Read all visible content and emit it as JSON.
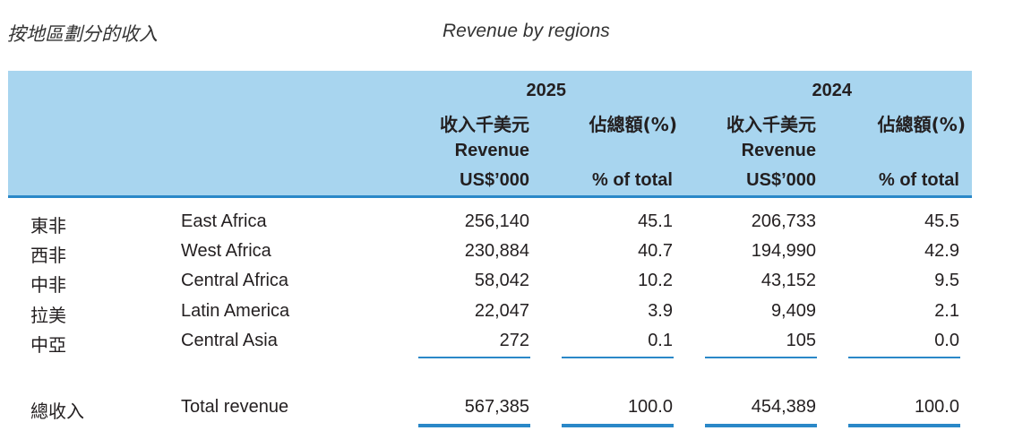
{
  "title": {
    "zh": "按地區劃分的收入",
    "en": "Revenue by regions"
  },
  "header": {
    "years": [
      "2025",
      "2024"
    ],
    "col_revenue_zh": "收入千美元",
    "col_revenue_en": "Revenue",
    "col_revenue_unit": "US$’000",
    "col_pct_zh": "佔總額(%)",
    "col_pct_en": "% of total"
  },
  "rows": [
    {
      "zh": "東非",
      "en": "East Africa",
      "rev_2025": "256,140",
      "pct_2025": "45.1",
      "rev_2024": "206,733",
      "pct_2024": "45.5"
    },
    {
      "zh": "西非",
      "en": "West Africa",
      "rev_2025": "230,884",
      "pct_2025": "40.7",
      "rev_2024": "194,990",
      "pct_2024": "42.9"
    },
    {
      "zh": "中非",
      "en": "Central Africa",
      "rev_2025": "58,042",
      "pct_2025": "10.2",
      "rev_2024": "43,152",
      "pct_2024": "9.5"
    },
    {
      "zh": "拉美",
      "en": "Latin America",
      "rev_2025": "22,047",
      "pct_2025": "3.9",
      "rev_2024": "9,409",
      "pct_2024": "2.1"
    },
    {
      "zh": "中亞",
      "en": "Central Asia",
      "rev_2025": "272",
      "pct_2025": "0.1",
      "rev_2024": "105",
      "pct_2024": "0.0"
    }
  ],
  "total": {
    "zh": "總收入",
    "en": "Total revenue",
    "rev_2025": "567,385",
    "pct_2025": "100.0",
    "rev_2024": "454,389",
    "pct_2024": "100.0"
  },
  "colors": {
    "header_band": "#a8d5ef",
    "rule": "#2a88c8"
  }
}
